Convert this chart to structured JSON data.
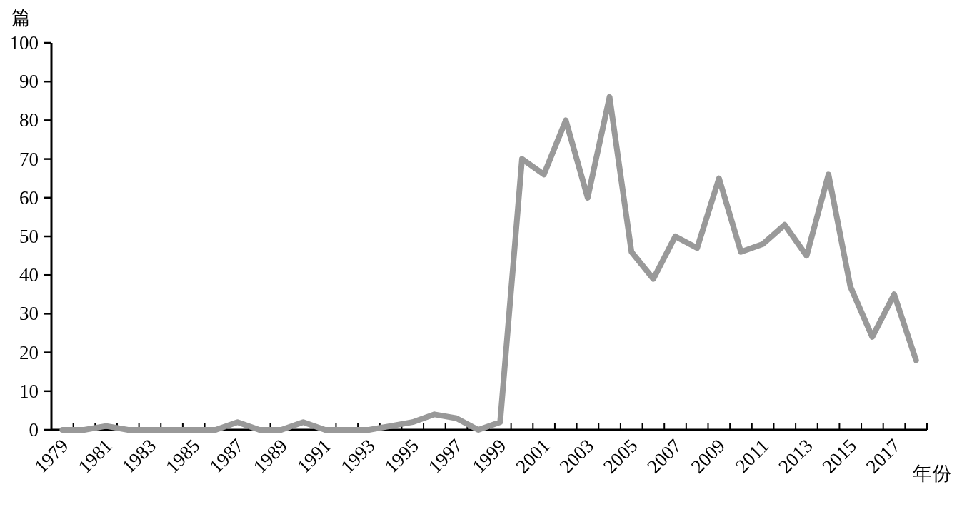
{
  "chart_data": {
    "type": "line",
    "xlabel": "年份",
    "ylabel": "篇",
    "categories": [
      "1979",
      null,
      "1981",
      null,
      "1983",
      null,
      "1985",
      null,
      "1987",
      null,
      "1989",
      null,
      "1991",
      null,
      "1993",
      null,
      "1995",
      null,
      "1997",
      null,
      "1999",
      null,
      "2001",
      null,
      "2003",
      null,
      "2005",
      null,
      "2007",
      null,
      "2009",
      null,
      "2011",
      null,
      "2013",
      null,
      "2015",
      null,
      "2017",
      null
    ],
    "series": [
      {
        "color": "#999999",
        "values": [
          0,
          0,
          1,
          0,
          0,
          0,
          0,
          0,
          2,
          0,
          0,
          2,
          0,
          0,
          0,
          1,
          2,
          4,
          3,
          0,
          2,
          70,
          66,
          80,
          60,
          86,
          46,
          39,
          50,
          47,
          65,
          46,
          48,
          53,
          45,
          66,
          37,
          24,
          35,
          18
        ]
      }
    ],
    "ylim": [
      0,
      100
    ],
    "yticks": [
      0,
      10,
      20,
      30,
      40,
      50,
      60,
      70,
      80,
      90,
      100
    ]
  }
}
